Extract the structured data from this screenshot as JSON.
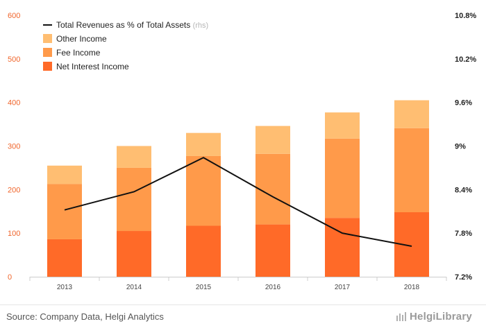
{
  "chart_data": {
    "type": "bar",
    "stacked": true,
    "categories": [
      "2013",
      "2014",
      "2015",
      "2016",
      "2017",
      "2018"
    ],
    "series": [
      {
        "name": "Net Interest Income",
        "values": [
          86,
          105,
          117,
          120,
          135,
          148
        ],
        "color": "#ff6a28"
      },
      {
        "name": "Fee Income",
        "values": [
          127,
          145,
          160,
          162,
          182,
          193
        ],
        "color": "#ff9a4a"
      },
      {
        "name": "Other Income",
        "values": [
          42,
          50,
          53,
          64,
          60,
          64
        ],
        "color": "#ffbe72"
      }
    ],
    "line_series": {
      "name": "Total Revenues as % of Total Assets",
      "name_suffix": "(rhs)",
      "values": [
        8.12,
        8.37,
        8.84,
        8.3,
        7.8,
        7.62
      ],
      "color": "#111111",
      "axis": "right"
    },
    "y_left": {
      "ylim": [
        0,
        600
      ],
      "ticks": [
        "0",
        "100",
        "200",
        "300",
        "400",
        "500",
        "600"
      ]
    },
    "y_right": {
      "ylim": [
        7.2,
        10.8
      ],
      "ticks": [
        "7.2%",
        "7.8%",
        "8.4%",
        "9%",
        "9.6%",
        "10.2%",
        "10.8%"
      ]
    },
    "legend_placement": "top-left",
    "grid": false
  },
  "footer": {
    "source": "Source: Company Data, Helgi Analytics",
    "brand": "HelgiLibrary"
  }
}
